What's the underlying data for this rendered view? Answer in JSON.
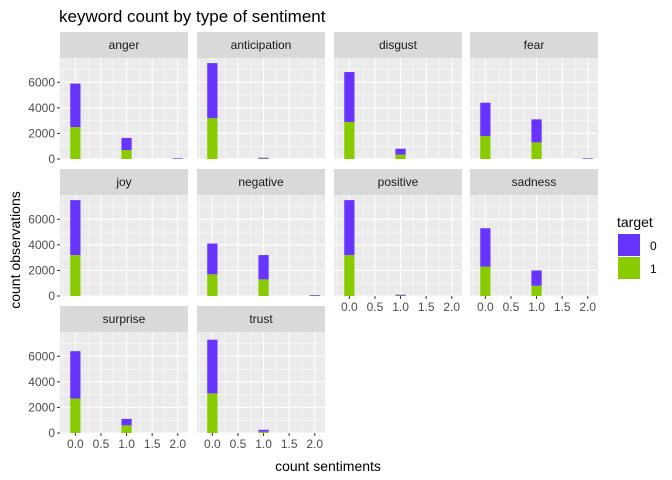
{
  "chart_data": {
    "type": "bar",
    "title": "keyword count by type of sentiment",
    "xlabel": "count sentiments",
    "ylabel": "count observations",
    "xlim": [
      -0.3,
      2.2
    ],
    "ylim": [
      0,
      7900
    ],
    "x_ticks": [
      0.0,
      0.5,
      1.0,
      1.5,
      2.0
    ],
    "x_tick_labels": [
      "0.0",
      "0.5",
      "1.0",
      "1.5",
      "2.0"
    ],
    "y_ticks": [
      0,
      2000,
      4000,
      6000
    ],
    "y_tick_labels": [
      "0",
      "2000",
      "4000",
      "6000"
    ],
    "x_categories": [
      0,
      1,
      2
    ],
    "stacked": true,
    "facet_wrap": {
      "ncol": 4,
      "scales": "fixed"
    },
    "legend": {
      "title": "target",
      "position": "right",
      "entries": [
        {
          "label": "0",
          "color": "#6633FF"
        },
        {
          "label": "1",
          "color": "#88CC00"
        }
      ]
    },
    "panel_background": "#EBEBEB",
    "strip_background": "#D9D9D9",
    "grid": true,
    "facets": [
      {
        "name": "anger",
        "series": [
          {
            "name": "0",
            "values": [
              3400,
              950,
              40
            ]
          },
          {
            "name": "1",
            "values": [
              2500,
              700,
              20
            ]
          }
        ]
      },
      {
        "name": "anticipation",
        "series": [
          {
            "name": "0",
            "values": [
              4300,
              60,
              0
            ]
          },
          {
            "name": "1",
            "values": [
              3200,
              40,
              0
            ]
          }
        ]
      },
      {
        "name": "disgust",
        "series": [
          {
            "name": "0",
            "values": [
              3900,
              450,
              0
            ]
          },
          {
            "name": "1",
            "values": [
              2900,
              350,
              0
            ]
          }
        ]
      },
      {
        "name": "fear",
        "series": [
          {
            "name": "0",
            "values": [
              2600,
              1800,
              40
            ]
          },
          {
            "name": "1",
            "values": [
              1800,
              1300,
              20
            ]
          }
        ]
      },
      {
        "name": "joy",
        "series": [
          {
            "name": "0",
            "values": [
              4300,
              0,
              0
            ]
          },
          {
            "name": "1",
            "values": [
              3200,
              0,
              0
            ]
          }
        ]
      },
      {
        "name": "negative",
        "series": [
          {
            "name": "0",
            "values": [
              2400,
              1900,
              50
            ]
          },
          {
            "name": "1",
            "values": [
              1700,
              1300,
              30
            ]
          }
        ]
      },
      {
        "name": "positive",
        "series": [
          {
            "name": "0",
            "values": [
              4300,
              60,
              0
            ]
          },
          {
            "name": "1",
            "values": [
              3200,
              40,
              0
            ]
          }
        ]
      },
      {
        "name": "sadness",
        "series": [
          {
            "name": "0",
            "values": [
              3000,
              1200,
              0
            ]
          },
          {
            "name": "1",
            "values": [
              2300,
              800,
              0
            ]
          }
        ]
      },
      {
        "name": "surprise",
        "series": [
          {
            "name": "0",
            "values": [
              3700,
              500,
              0
            ]
          },
          {
            "name": "1",
            "values": [
              2700,
              600,
              0
            ]
          }
        ]
      },
      {
        "name": "trust",
        "series": [
          {
            "name": "0",
            "values": [
              4200,
              150,
              0
            ]
          },
          {
            "name": "1",
            "values": [
              3100,
              100,
              0
            ]
          }
        ]
      }
    ]
  }
}
